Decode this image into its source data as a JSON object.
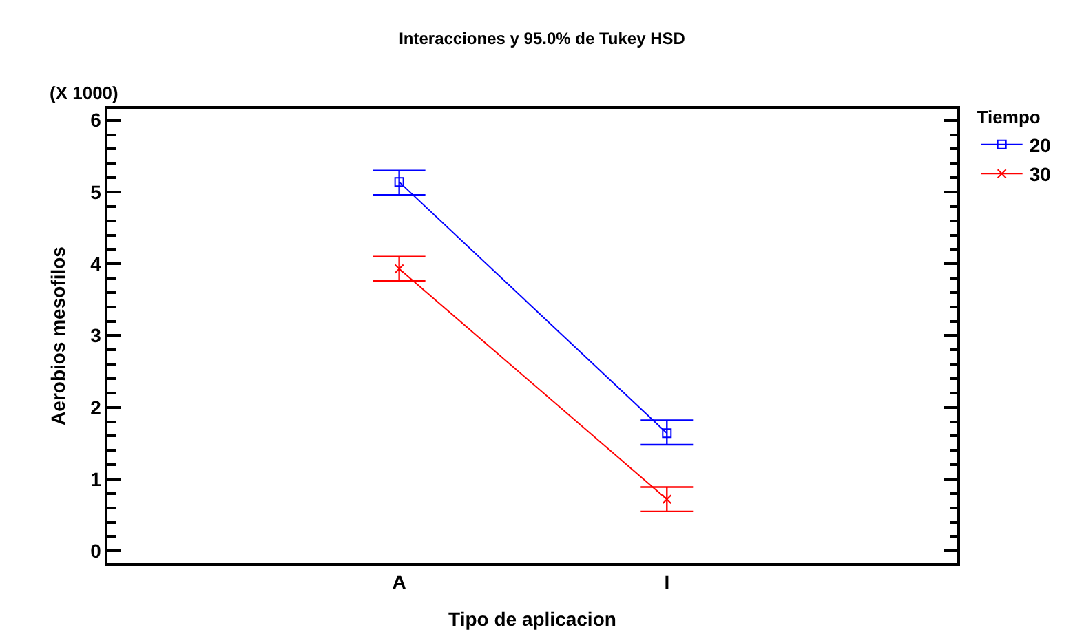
{
  "chart_data": {
    "type": "line",
    "title": "Interacciones y 95.0% de Tukey HSD",
    "xlabel": "Tipo de aplicacion",
    "ylabel": "Aerobios mesofilos",
    "legend_title": "Tiempo",
    "annotations": [
      "(X 1000)"
    ],
    "categories": [
      "A",
      "I"
    ],
    "series": [
      {
        "name": "20",
        "color": "#0000ff",
        "marker": "square",
        "values": [
          5.14,
          1.64
        ],
        "errors": [
          [
            4.96,
            5.3
          ],
          [
            1.48,
            1.82
          ]
        ]
      },
      {
        "name": "30",
        "color": "#ff0000",
        "marker": "cross",
        "values": [
          3.93,
          0.72
        ],
        "errors": [
          [
            3.76,
            4.1
          ],
          [
            0.55,
            0.89
          ]
        ]
      }
    ],
    "ylim": [
      -0.17,
      6.16
    ],
    "yticks": [
      0,
      1,
      2,
      3,
      4,
      5,
      6
    ],
    "legend": "top right",
    "line_style": "solid"
  }
}
